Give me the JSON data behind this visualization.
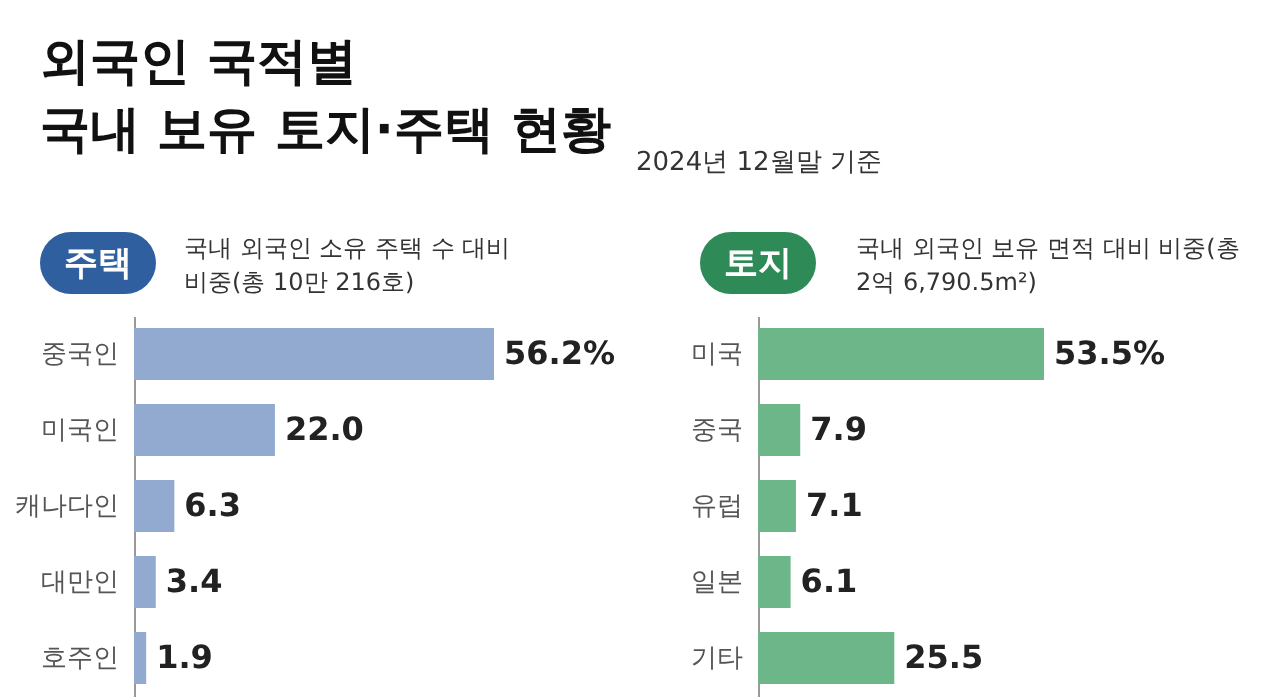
{
  "chart_data": [
    {
      "type": "bar",
      "orientation": "horizontal",
      "title": "주택",
      "subtitle": "국내 외국인 소유 주택 수 대비 비중(총 10만 216호)",
      "annotations": [
        "외국인 국적별",
        "국내 보유 토지·주택 현황",
        "2024년 12월말 기준"
      ],
      "categories": [
        "중국인",
        "미국인",
        "캐나다인",
        "대만인",
        "호주인"
      ],
      "values": [
        56.2,
        22.0,
        6.3,
        3.4,
        1.9
      ],
      "color": "#92aacf",
      "value_labels": [
        "56.2%",
        "22.0",
        "6.3",
        "3.4",
        "1.9"
      ]
    },
    {
      "type": "bar",
      "orientation": "horizontal",
      "title": "토지",
      "subtitle": "국내 외국인 보유 면적 대비 비중(총 2억 6,790.5m²)",
      "categories": [
        "미국",
        "중국",
        "유럽",
        "일본",
        "기타"
      ],
      "values": [
        53.5,
        7.9,
        7.1,
        6.1,
        25.5
      ],
      "color": "#6db68a",
      "value_labels": [
        "53.5%",
        "7.9",
        "7.1",
        "6.1",
        "25.5"
      ]
    }
  ]
}
